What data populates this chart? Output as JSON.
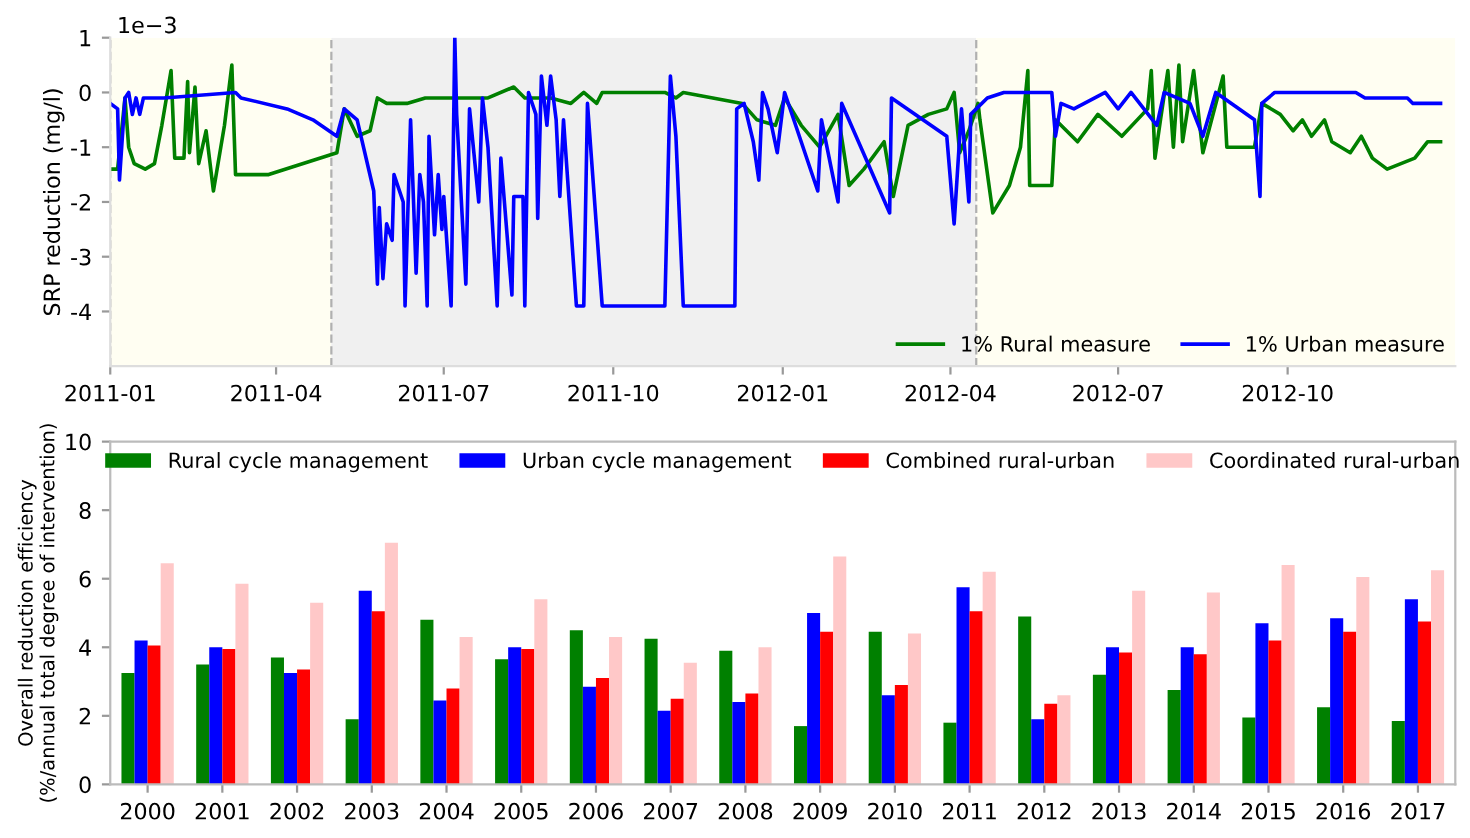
{
  "chart_data": [
    {
      "type": "line",
      "ylabel": "SRP reduction (mg/l)",
      "annotations": [
        "1e−3"
      ],
      "xlim": [
        "2011-01-01",
        "2012-12-31"
      ],
      "xticks": [
        {
          "value": "2011-01-01",
          "label": "2011-01"
        },
        {
          "value": "2011-04-01",
          "label": "2011-04"
        },
        {
          "value": "2011-07-01",
          "label": "2011-07"
        },
        {
          "value": "2011-10-01",
          "label": "2011-10"
        },
        {
          "value": "2012-01-01",
          "label": "2012-01"
        },
        {
          "value": "2012-04-01",
          "label": "2012-04"
        },
        {
          "value": "2012-07-01",
          "label": "2012-07"
        },
        {
          "value": "2012-10-01",
          "label": "2012-10"
        }
      ],
      "ylim": [
        -5,
        1
      ],
      "yticks": [
        -4,
        -3,
        -2,
        -1,
        0,
        1
      ],
      "bands": [
        {
          "axis": "x",
          "from": "2011-01-01",
          "to": "2011-05-01",
          "color": "#fffef2"
        },
        {
          "axis": "x",
          "from": "2011-05-01",
          "to": "2012-04-15",
          "color": "#f0f0f0"
        },
        {
          "axis": "x",
          "from": "2012-04-15",
          "to": "2012-12-31",
          "color": "#fffef2"
        }
      ],
      "ref_lines": [
        {
          "axis": "x",
          "value": "2011-01-01",
          "color": "#b0b0b0",
          "line_style": "dashed"
        },
        {
          "axis": "x",
          "value": "2011-05-01",
          "color": "#b0b0b0",
          "line_style": "dashed"
        },
        {
          "axis": "x",
          "value": "2012-04-15",
          "color": "#b0b0b0",
          "line_style": "dashed"
        }
      ],
      "legend": "bottom right",
      "grid": false,
      "series": [
        {
          "name": "1% Rural measure",
          "color": "#008000",
          "x": [
            "2011-01-01",
            "2011-01-05",
            "2011-01-09",
            "2011-01-11",
            "2011-01-14",
            "2011-01-20",
            "2011-01-25",
            "2011-01-29",
            "2011-02-03",
            "2011-02-05",
            "2011-02-10",
            "2011-02-12",
            "2011-02-13",
            "2011-02-16",
            "2011-02-18",
            "2011-02-22",
            "2011-02-26",
            "2011-03-04",
            "2011-03-08",
            "2011-03-10",
            "2011-03-28",
            "2011-05-04",
            "2011-05-08",
            "2011-05-15",
            "2011-05-22",
            "2011-05-26",
            "2011-05-31",
            "2011-06-11",
            "2011-06-21",
            "2011-07-05",
            "2011-07-25",
            "2011-08-08",
            "2011-08-14",
            "2011-08-28",
            "2011-09-08",
            "2011-09-15",
            "2011-09-22",
            "2011-09-25",
            "2011-10-29",
            "2011-11-04",
            "2011-11-08",
            "2011-12-10",
            "2011-12-18",
            "2011-12-28",
            "2012-01-02",
            "2012-01-11",
            "2012-01-21",
            "2012-01-31",
            "2012-02-06",
            "2012-02-14",
            "2012-02-25",
            "2012-03-01",
            "2012-03-09",
            "2012-03-20",
            "2012-03-30",
            "2012-04-03",
            "2012-04-06",
            "2012-04-11",
            "2012-04-16",
            "2012-04-17",
            "2012-04-24",
            "2012-05-03",
            "2012-05-09",
            "2012-05-13",
            "2012-05-14",
            "2012-05-26",
            "2012-05-28",
            "2012-06-09",
            "2012-06-20",
            "2012-07-03",
            "2012-07-17",
            "2012-07-19",
            "2012-07-21",
            "2012-07-24",
            "2012-07-28",
            "2012-07-31",
            "2012-08-03",
            "2012-08-05",
            "2012-08-11",
            "2012-08-16",
            "2012-08-27",
            "2012-08-29",
            "2012-09-13",
            "2012-09-17",
            "2012-09-27",
            "2012-10-04",
            "2012-10-09",
            "2012-10-14",
            "2012-10-21",
            "2012-10-25",
            "2012-11-04",
            "2012-11-10",
            "2012-11-16",
            "2012-11-24",
            "2012-12-09",
            "2012-12-16",
            "2012-12-23"
          ],
          "values": [
            -1.4,
            -1.4,
            -0.1,
            -1.0,
            -1.3,
            -1.4,
            -1.3,
            -0.6,
            0.4,
            -1.2,
            -1.2,
            0.2,
            -1.1,
            0.1,
            -1.3,
            -0.7,
            -1.8,
            -0.6,
            0.5,
            -1.5,
            -1.5,
            -1.1,
            -0.3,
            -0.8,
            -0.7,
            -0.1,
            -0.2,
            -0.2,
            -0.1,
            -0.1,
            -0.1,
            0.1,
            -0.1,
            -0.1,
            -0.2,
            0,
            -0.2,
            0,
            0,
            -0.1,
            0,
            -0.2,
            -0.5,
            -0.6,
            -0.1,
            -0.6,
            -1.0,
            -0.4,
            -1.7,
            -1.4,
            -0.9,
            -1.9,
            -0.6,
            -0.4,
            -0.3,
            0,
            -1.1,
            -0.7,
            -0.2,
            -0.5,
            -2.2,
            -1.7,
            -1.0,
            0.4,
            -1.7,
            -1.7,
            -0.5,
            -0.9,
            -0.4,
            -0.8,
            -0.3,
            0.4,
            -1.2,
            -0.5,
            0.4,
            -1.0,
            0.5,
            -0.9,
            0.4,
            -1.1,
            0.3,
            -1.0,
            -1.0,
            -0.2,
            -0.4,
            -0.7,
            -0.5,
            -0.8,
            -0.5,
            -0.9,
            -1.1,
            -0.8,
            -1.2,
            -1.4,
            -1.2,
            -0.9,
            -0.9
          ]
        },
        {
          "name": "1% Urban measure",
          "color": "#0000ff",
          "x": [
            "2011-01-01",
            "2011-01-05",
            "2011-01-06",
            "2011-01-09",
            "2011-01-11",
            "2011-01-13",
            "2011-01-15",
            "2011-01-17",
            "2011-01-19",
            "2011-01-30",
            "2011-03-10",
            "2011-03-13",
            "2011-04-07",
            "2011-04-21",
            "2011-05-04",
            "2011-05-08",
            "2011-05-15",
            "2011-05-24",
            "2011-05-26",
            "2011-05-27",
            "2011-05-29",
            "2011-05-31",
            "2011-06-03",
            "2011-06-04",
            "2011-06-09",
            "2011-06-10",
            "2011-06-13",
            "2011-06-16",
            "2011-06-18",
            "2011-06-20",
            "2011-06-22",
            "2011-06-23",
            "2011-06-26",
            "2011-06-28",
            "2011-06-30",
            "2011-07-01",
            "2011-07-05",
            "2011-07-07",
            "2011-07-08",
            "2011-07-13",
            "2011-07-15",
            "2011-07-20",
            "2011-07-22",
            "2011-07-25",
            "2011-07-30",
            "2011-08-01",
            "2011-08-07",
            "2011-08-08",
            "2011-08-13",
            "2011-08-14",
            "2011-08-16",
            "2011-08-20",
            "2011-08-21",
            "2011-08-23",
            "2011-08-26",
            "2011-08-28",
            "2011-08-31",
            "2011-09-02",
            "2011-09-04",
            "2011-09-11",
            "2011-09-15",
            "2011-09-17",
            "2011-09-25",
            "2011-10-29",
            "2011-11-01",
            "2011-11-04",
            "2011-11-08",
            "2011-12-06",
            "2011-12-07",
            "2011-12-11",
            "2011-12-16",
            "2011-12-19",
            "2011-12-21",
            "2011-12-24",
            "2011-12-29",
            "2012-01-02",
            "2012-01-20",
            "2012-01-22",
            "2012-01-31",
            "2012-02-02",
            "2012-02-28",
            "2012-02-29",
            "2012-03-30",
            "2012-04-03",
            "2012-04-07",
            "2012-04-11",
            "2012-04-12",
            "2012-04-21",
            "2012-04-30",
            "2012-05-26",
            "2012-05-28",
            "2012-05-31",
            "2012-06-07",
            "2012-06-24",
            "2012-07-01",
            "2012-07-08",
            "2012-07-22",
            "2012-07-26",
            "2012-08-09",
            "2012-08-16",
            "2012-08-23",
            "2012-09-13",
            "2012-09-16",
            "2012-09-17",
            "2012-09-24",
            "2012-11-07",
            "2012-11-12",
            "2012-12-05",
            "2012-12-08",
            "2012-12-23"
          ],
          "values": [
            -0.2,
            -0.3,
            -1.6,
            -0.1,
            0,
            -0.4,
            -0.1,
            -0.4,
            -0.1,
            -0.1,
            0,
            -0.1,
            -0.3,
            -0.5,
            -0.8,
            -0.3,
            -0.5,
            -1.8,
            -3.5,
            -2.1,
            -3.4,
            -2.4,
            -2.7,
            -1.5,
            -2.0,
            -3.9,
            -0.5,
            -3.3,
            -1.5,
            -2.0,
            -3.9,
            -0.8,
            -2.6,
            -1.5,
            -2.5,
            -1.9,
            -3.9,
            1.0,
            -0.4,
            -3.5,
            -0.3,
            -2.0,
            -0.1,
            -1.0,
            -3.9,
            -1.2,
            -3.7,
            -1.9,
            -1.9,
            -3.9,
            0,
            -0.4,
            -2.3,
            0.3,
            -0.6,
            0.3,
            -0.5,
            -1.9,
            -0.5,
            -3.9,
            -3.9,
            -0.2,
            -3.9,
            -3.9,
            0.3,
            -0.8,
            -3.9,
            -3.9,
            -0.3,
            -0.2,
            -0.9,
            -1.6,
            0,
            -0.3,
            -1.1,
            0,
            -1.8,
            -0.5,
            -2.0,
            -0.2,
            -2.2,
            -0.1,
            -0.8,
            -2.4,
            -0.3,
            -2.0,
            -0.4,
            -0.1,
            0,
            0,
            -0.8,
            -0.2,
            -0.3,
            0,
            -0.3,
            0,
            -0.6,
            0,
            -0.2,
            -0.8,
            0,
            -0.5,
            -1.9,
            -0.2,
            0,
            0,
            -0.1,
            -0.1,
            -0.2,
            -0.2
          ]
        }
      ]
    },
    {
      "type": "bar",
      "ylabel": "Overall reduction efficiency\n(%/annual total degree of intervention)",
      "categories": [
        "2000",
        "2001",
        "2002",
        "2003",
        "2004",
        "2005",
        "2006",
        "2007",
        "2008",
        "2009",
        "2010",
        "2011",
        "2012",
        "2013",
        "2014",
        "2015",
        "2016",
        "2017"
      ],
      "ylim": [
        0,
        10
      ],
      "yticks": [
        0,
        2,
        4,
        6,
        8,
        10
      ],
      "legend": "top",
      "grid": false,
      "series": [
        {
          "name": "Rural cycle management",
          "color": "#008000",
          "values": [
            3.25,
            3.5,
            3.7,
            1.9,
            4.8,
            3.65,
            4.5,
            4.25,
            3.9,
            1.7,
            4.45,
            1.8,
            4.9,
            3.2,
            2.75,
            1.95,
            2.25,
            1.85
          ]
        },
        {
          "name": "Urban cycle management",
          "color": "#0000ff",
          "values": [
            4.2,
            4.0,
            3.25,
            5.65,
            2.45,
            4.0,
            2.85,
            2.15,
            2.4,
            5.0,
            2.6,
            5.75,
            1.9,
            4.0,
            4.0,
            4.7,
            4.85,
            5.4
          ]
        },
        {
          "name": "Combined rural-urban",
          "color": "#ff0000",
          "values": [
            4.05,
            3.95,
            3.35,
            5.05,
            2.8,
            3.95,
            3.1,
            2.5,
            2.65,
            4.45,
            2.9,
            5.05,
            2.35,
            3.85,
            3.8,
            4.2,
            4.45,
            4.75
          ]
        },
        {
          "name": "Coordinated rural-urban",
          "color": "#ffc8c8",
          "values": [
            6.45,
            5.85,
            5.3,
            7.05,
            4.3,
            5.4,
            4.3,
            3.55,
            4.0,
            6.65,
            4.4,
            6.2,
            2.6,
            5.65,
            5.6,
            6.4,
            6.05,
            6.25
          ]
        }
      ]
    }
  ]
}
